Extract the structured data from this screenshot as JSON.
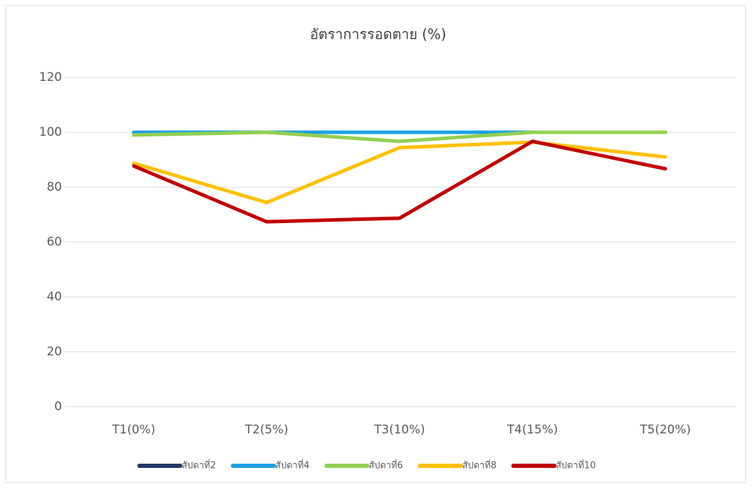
{
  "chart_data": {
    "type": "line",
    "title": "อัตราการรอดตาย (%)",
    "categories": [
      "T1(0%)",
      "T2(5%)",
      "T3(10%)",
      "T4(15%)",
      "T5(20%)"
    ],
    "series": [
      {
        "name": "สัปดาที่2",
        "color": "#1f3864",
        "values": [
          100,
          100,
          100,
          100,
          100
        ]
      },
      {
        "name": "สัปดาที่4",
        "color": "#1ba1e2",
        "values": [
          100,
          100,
          100,
          100,
          100
        ]
      },
      {
        "name": "สัปดาที่6",
        "color": "#92d050",
        "values": [
          99,
          100,
          96.7,
          100,
          100
        ]
      },
      {
        "name": "สัปดาที่8",
        "color": "#ffc000",
        "values": [
          88.7,
          74.4,
          94.4,
          96.4,
          91
        ]
      },
      {
        "name": "สัปดาที่10",
        "color": "#c00000",
        "values": [
          87.7,
          67.4,
          68.7,
          96.7,
          86.7
        ]
      }
    ],
    "ylim": [
      0,
      120
    ],
    "yticks": [
      0,
      20,
      40,
      60,
      80,
      100,
      120
    ],
    "grid": true,
    "legend": "bottom"
  }
}
